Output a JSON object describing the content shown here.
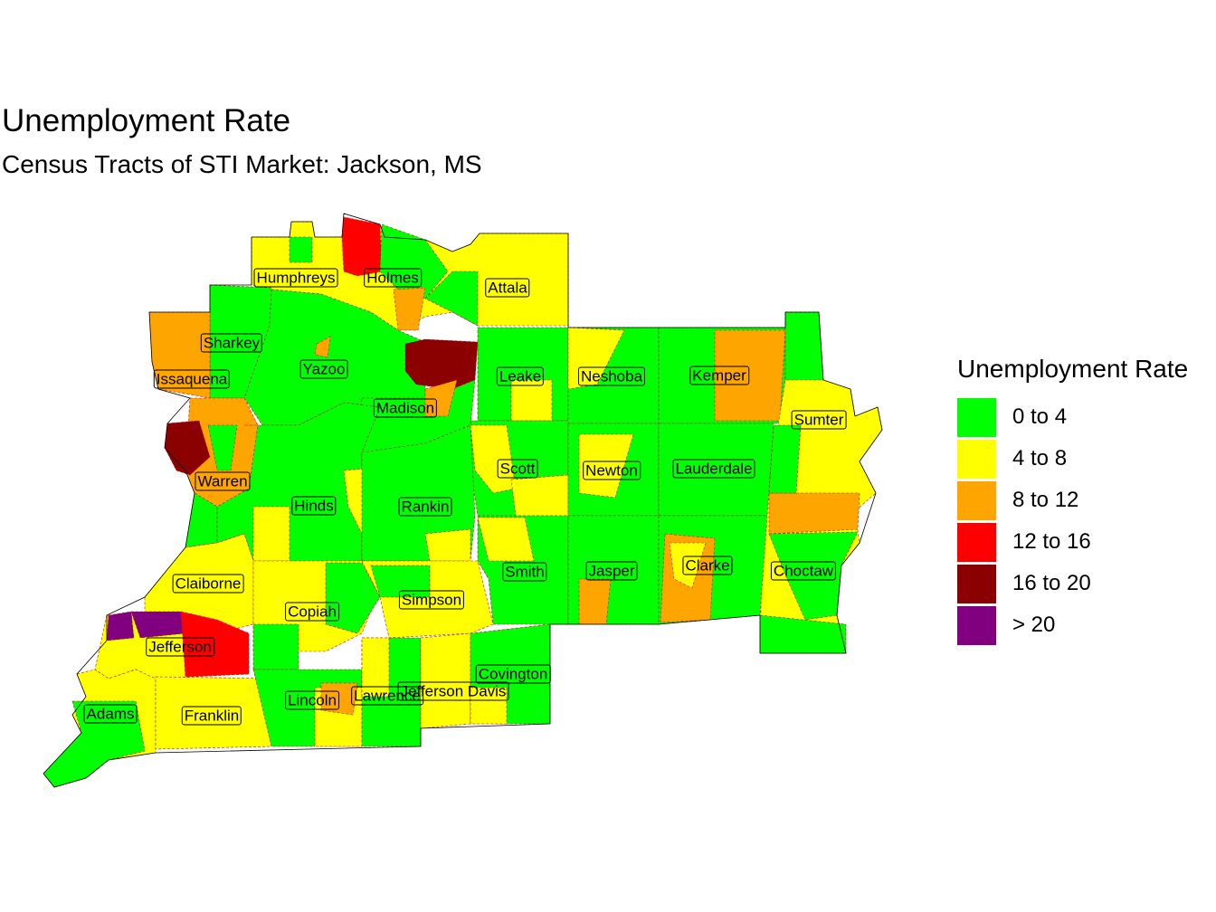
{
  "title": "Unemployment Rate",
  "subtitle": "Census Tracts of STI Market: Jackson, MS",
  "legend": {
    "title": "Unemployment Rate",
    "items": [
      {
        "label": "0 to 4",
        "color": "#00ff00"
      },
      {
        "label": "4 to 8",
        "color": "#ffff00"
      },
      {
        "label": "8 to 12",
        "color": "#ffa500"
      },
      {
        "label": "12 to 16",
        "color": "#ff0000"
      },
      {
        "label": "16 to 20",
        "color": "#8b0000"
      },
      {
        "label": "> 20",
        "color": "#800080"
      }
    ]
  },
  "counties": [
    {
      "name": "Humphreys"
    },
    {
      "name": "Holmes"
    },
    {
      "name": "Attala"
    },
    {
      "name": "Sharkey"
    },
    {
      "name": "Yazoo"
    },
    {
      "name": "Issaquena"
    },
    {
      "name": "Leake"
    },
    {
      "name": "Neshoba"
    },
    {
      "name": "Kemper"
    },
    {
      "name": "Madison"
    },
    {
      "name": "Sumter"
    },
    {
      "name": "Warren"
    },
    {
      "name": "Scott"
    },
    {
      "name": "Newton"
    },
    {
      "name": "Lauderdale"
    },
    {
      "name": "Hinds"
    },
    {
      "name": "Rankin"
    },
    {
      "name": "Smith"
    },
    {
      "name": "Jasper"
    },
    {
      "name": "Clarke"
    },
    {
      "name": "Choctaw"
    },
    {
      "name": "Claiborne"
    },
    {
      "name": "Copiah"
    },
    {
      "name": "Simpson"
    },
    {
      "name": "Jefferson"
    },
    {
      "name": "Covington"
    },
    {
      "name": "Jefferson Davis"
    },
    {
      "name": "Lawrence"
    },
    {
      "name": "Lincoln"
    },
    {
      "name": "Adams"
    },
    {
      "name": "Franklin"
    }
  ]
}
